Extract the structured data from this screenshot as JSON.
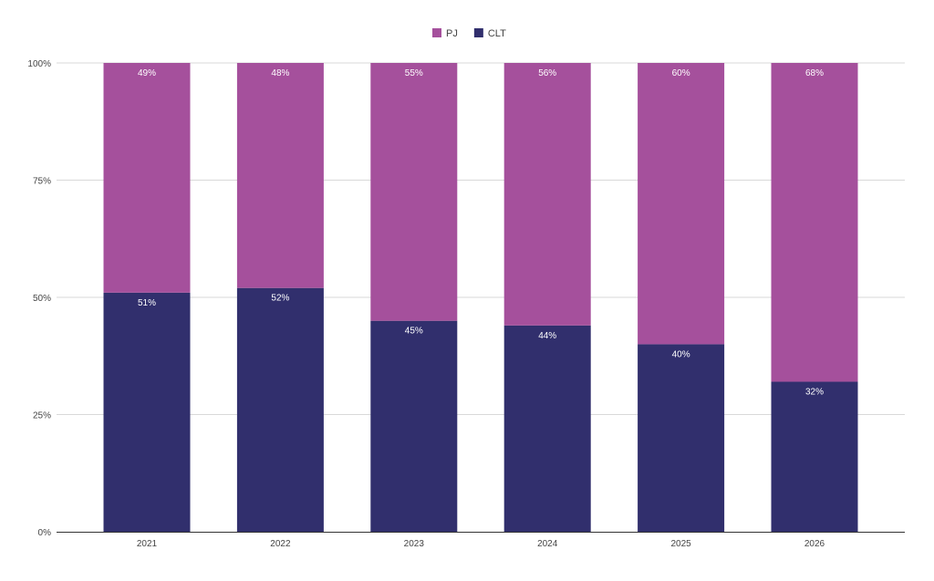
{
  "chart_data": {
    "type": "bar",
    "stacked": "percent",
    "categories": [
      "2021",
      "2022",
      "2023",
      "2024",
      "2025",
      "2026"
    ],
    "series": [
      {
        "name": "CLT",
        "values": [
          51,
          52,
          45,
          44,
          40,
          32
        ],
        "labels": [
          "51%",
          "52%",
          "45%",
          "44%",
          "40%",
          "32%"
        ],
        "color": "#312f6d"
      },
      {
        "name": "PJ",
        "values": [
          49,
          48,
          55,
          56,
          60,
          68
        ],
        "labels": [
          "49%",
          "48%",
          "55%",
          "56%",
          "60%",
          "68%"
        ],
        "color": "#a5509c"
      }
    ],
    "legend_order": [
      "PJ",
      "CLT"
    ],
    "legend_position": "top",
    "yticks": [
      "0%",
      "25%",
      "50%",
      "75%",
      "100%"
    ],
    "ylim": [
      0,
      100
    ],
    "grid": true,
    "title": "",
    "xlabel": "",
    "ylabel": ""
  }
}
